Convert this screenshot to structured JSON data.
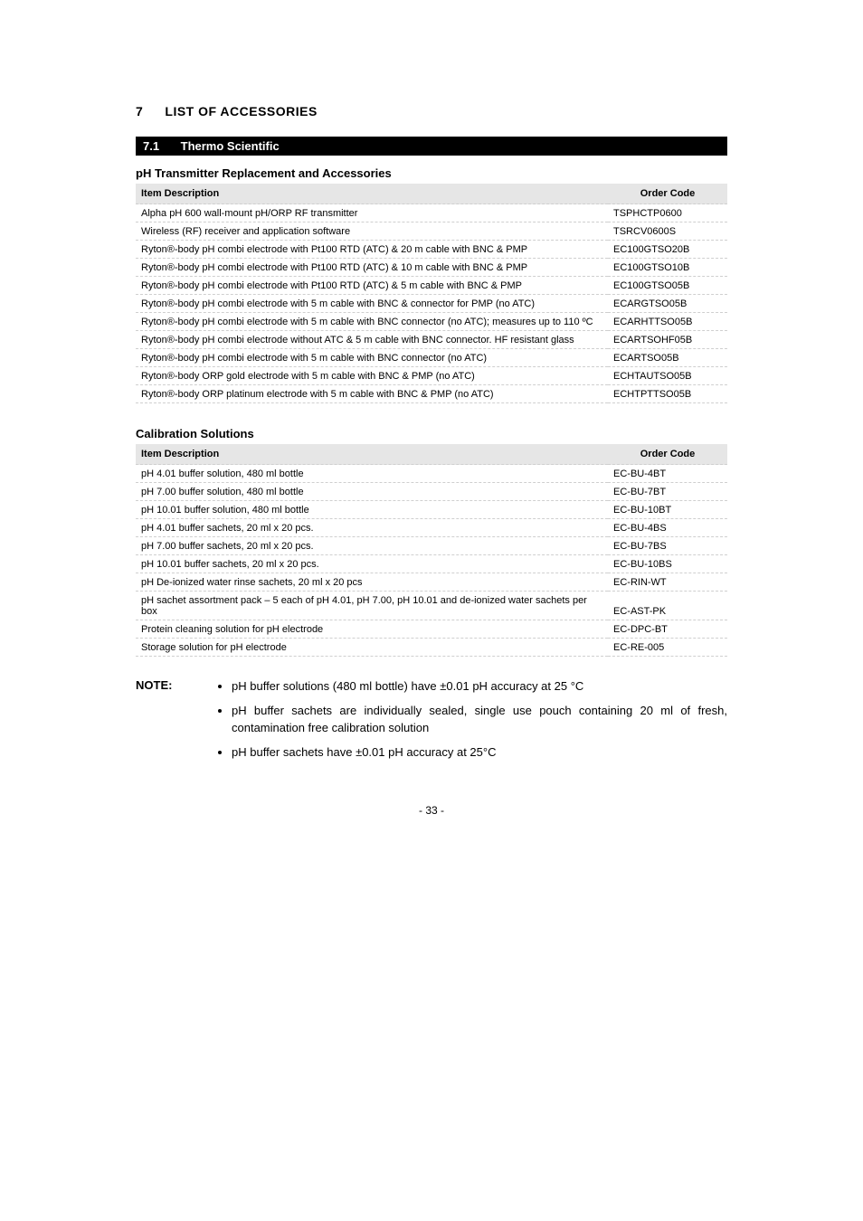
{
  "section": {
    "number": "7",
    "title": "LIST OF ACCESSORIES"
  },
  "subsection": {
    "number": "7.1",
    "title": "Thermo Scientific"
  },
  "tables": {
    "phTransmitter": {
      "title": "pH Transmitter Replacement and Accessories",
      "headers": {
        "desc": "Item Description",
        "code": "Order Code"
      },
      "rows": [
        {
          "desc": "Alpha pH 600 wall-mount pH/ORP RF transmitter",
          "code": "TSPHCTP0600"
        },
        {
          "desc": "Wireless (RF) receiver and application software",
          "code": "TSRCV0600S"
        },
        {
          "desc": "Ryton®-body pH combi electrode with Pt100 RTD (ATC) & 20 m cable with BNC & PMP",
          "code": "EC100GTSO20B"
        },
        {
          "desc": "Ryton®-body pH combi electrode with Pt100 RTD (ATC) & 10 m cable with BNC & PMP",
          "code": "EC100GTSO10B"
        },
        {
          "desc": "Ryton®-body pH combi electrode with Pt100 RTD (ATC) & 5 m cable with BNC & PMP",
          "code": "EC100GTSO05B"
        },
        {
          "desc": "Ryton®-body pH combi electrode with 5 m cable with BNC & connector for PMP (no ATC)",
          "code": "ECARGTSO05B"
        },
        {
          "desc": "Ryton®-body pH combi electrode with 5 m cable with BNC connector (no ATC); measures up to 110 ºC",
          "code": "ECARHTTSO05B"
        },
        {
          "desc": "Ryton®-body pH combi electrode without ATC & 5 m cable with BNC connector. HF resistant glass",
          "code": "ECARTSOHF05B"
        },
        {
          "desc": "Ryton®-body pH combi electrode with 5 m cable with BNC connector (no ATC)",
          "code": "ECARTSO05B"
        },
        {
          "desc": "Ryton®-body ORP gold electrode with 5 m cable with BNC & PMP (no ATC)",
          "code": "ECHTAUTSO05B"
        },
        {
          "desc": "Ryton®-body ORP platinum electrode with 5 m cable with BNC & PMP (no ATC)",
          "code": "ECHTPTTSO05B"
        }
      ]
    },
    "calibration": {
      "title": "Calibration Solutions",
      "headers": {
        "desc": "Item Description",
        "code": "Order Code"
      },
      "rows": [
        {
          "desc": "pH 4.01 buffer solution, 480 ml bottle",
          "code": "EC-BU-4BT"
        },
        {
          "desc": "pH 7.00 buffer solution, 480 ml bottle",
          "code": "EC-BU-7BT"
        },
        {
          "desc": "pH 10.01 buffer solution, 480 ml bottle",
          "code": "EC-BU-10BT"
        },
        {
          "desc": "pH 4.01 buffer sachets, 20 ml x 20 pcs.",
          "code": "EC-BU-4BS"
        },
        {
          "desc": "pH 7.00 buffer sachets, 20 ml x 20 pcs.",
          "code": "EC-BU-7BS"
        },
        {
          "desc": "pH 10.01 buffer sachets, 20 ml x 20 pcs.",
          "code": "EC-BU-10BS"
        },
        {
          "desc": "pH De-ionized water rinse sachets, 20 ml x 20 pcs",
          "code": "EC-RIN-WT"
        },
        {
          "desc": "pH sachet assortment pack – 5 each of pH 4.01, pH 7.00, pH 10.01 and de-ionized water sachets per box",
          "code": "EC-AST-PK"
        },
        {
          "desc": "Protein cleaning solution for pH electrode",
          "code": "EC-DPC-BT"
        },
        {
          "desc": "Storage solution for pH electrode",
          "code": "EC-RE-005"
        }
      ]
    }
  },
  "note": {
    "label": "NOTE:",
    "items": [
      "pH buffer solutions (480 ml bottle) have ±0.01 pH accuracy at 25 °C",
      "pH buffer sachets are individually sealed, single use pouch containing 20 ml of fresh, contamination free calibration solution",
      "pH buffer sachets have ±0.01 pH accuracy at 25°C"
    ]
  },
  "footer": "- 33 -"
}
